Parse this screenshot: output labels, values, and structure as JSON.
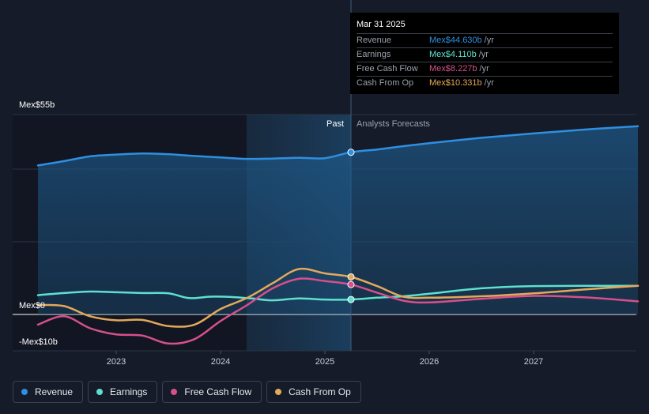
{
  "chart_data": {
    "type": "line",
    "y_axis": {
      "min": -10,
      "max": 55,
      "top_label": "Mex$55b",
      "zero_label": "Mex$0",
      "bottom_label": "-Mex$10b"
    },
    "x_ticks": [
      2023,
      2024,
      2025,
      2026,
      2027
    ],
    "x_tick_labels": [
      "2023",
      "2024",
      "2025",
      "2026",
      "2027"
    ],
    "x_range": [
      2022.25,
      2028.0
    ],
    "forecast_start": 2025.25,
    "past_shade_start": 2024.25,
    "past_label": "Past",
    "forecast_label": "Analysts Forecasts",
    "series": [
      {
        "key": "revenue",
        "name": "Revenue",
        "color": "#2f8fe0",
        "area": true,
        "points": [
          [
            2022.25,
            41.0
          ],
          [
            2022.5,
            42.2
          ],
          [
            2022.75,
            43.5
          ],
          [
            2023.0,
            44.0
          ],
          [
            2023.25,
            44.3
          ],
          [
            2023.5,
            44.1
          ],
          [
            2023.75,
            43.6
          ],
          [
            2024.0,
            43.2
          ],
          [
            2024.25,
            42.8
          ],
          [
            2024.5,
            42.9
          ],
          [
            2024.75,
            43.1
          ],
          [
            2025.0,
            43.0
          ],
          [
            2025.25,
            44.63
          ],
          [
            2025.5,
            45.4
          ],
          [
            2025.75,
            46.3
          ],
          [
            2026.0,
            47.1
          ],
          [
            2026.5,
            48.6
          ],
          [
            2027.0,
            49.8
          ],
          [
            2027.5,
            50.9
          ],
          [
            2028.0,
            51.8
          ]
        ],
        "highlight": 44.63
      },
      {
        "key": "earnings",
        "name": "Earnings",
        "color": "#5fe0cf",
        "points": [
          [
            2022.25,
            5.3
          ],
          [
            2022.5,
            5.9
          ],
          [
            2022.75,
            6.3
          ],
          [
            2023.0,
            6.1
          ],
          [
            2023.25,
            5.9
          ],
          [
            2023.5,
            5.8
          ],
          [
            2023.7,
            4.5
          ],
          [
            2023.9,
            4.9
          ],
          [
            2024.1,
            4.8
          ],
          [
            2024.3,
            4.4
          ],
          [
            2024.5,
            3.9
          ],
          [
            2024.75,
            4.4
          ],
          [
            2025.0,
            4.1
          ],
          [
            2025.25,
            4.11
          ],
          [
            2025.5,
            4.6
          ],
          [
            2025.75,
            5.0
          ],
          [
            2026.0,
            5.7
          ],
          [
            2026.5,
            7.2
          ],
          [
            2027.0,
            7.8
          ],
          [
            2028.0,
            7.9
          ]
        ],
        "highlight": 4.11
      },
      {
        "key": "fcf",
        "name": "Free Cash Flow",
        "color": "#d6508a",
        "points": [
          [
            2022.25,
            -2.8
          ],
          [
            2022.5,
            -0.5
          ],
          [
            2022.75,
            -3.8
          ],
          [
            2023.0,
            -5.5
          ],
          [
            2023.25,
            -5.8
          ],
          [
            2023.5,
            -8.0
          ],
          [
            2023.75,
            -6.8
          ],
          [
            2024.0,
            -1.8
          ],
          [
            2024.25,
            2.5
          ],
          [
            2024.5,
            7.2
          ],
          [
            2024.75,
            9.8
          ],
          [
            2025.0,
            9.2
          ],
          [
            2025.25,
            8.227
          ],
          [
            2025.5,
            6.0
          ],
          [
            2025.75,
            3.8
          ],
          [
            2026.0,
            3.3
          ],
          [
            2026.5,
            4.3
          ],
          [
            2027.0,
            5.1
          ],
          [
            2027.5,
            4.7
          ],
          [
            2028.0,
            3.6
          ]
        ],
        "highlight": 8.227
      },
      {
        "key": "cfo",
        "name": "Cash From Op",
        "color": "#e4a85a",
        "points": [
          [
            2022.25,
            2.6
          ],
          [
            2022.5,
            2.3
          ],
          [
            2022.75,
            -0.5
          ],
          [
            2023.0,
            -1.6
          ],
          [
            2023.25,
            -1.5
          ],
          [
            2023.5,
            -3.2
          ],
          [
            2023.75,
            -2.8
          ],
          [
            2024.0,
            1.5
          ],
          [
            2024.25,
            4.5
          ],
          [
            2024.5,
            8.6
          ],
          [
            2024.75,
            12.5
          ],
          [
            2025.0,
            11.3
          ],
          [
            2025.25,
            10.331
          ],
          [
            2025.5,
            7.8
          ],
          [
            2025.75,
            4.9
          ],
          [
            2026.0,
            4.6
          ],
          [
            2026.5,
            5.0
          ],
          [
            2027.0,
            5.8
          ],
          [
            2027.5,
            6.9
          ],
          [
            2028.0,
            7.9
          ]
        ],
        "highlight": 10.331
      }
    ]
  },
  "tooltip": {
    "date": "Mar 31 2025",
    "rows": [
      {
        "label": "Revenue",
        "value": "Mex$44.630b",
        "unit": "/yr",
        "color": "#2f8fe0"
      },
      {
        "label": "Earnings",
        "value": "Mex$4.110b",
        "unit": "/yr",
        "color": "#5fe0cf"
      },
      {
        "label": "Free Cash Flow",
        "value": "Mex$8.227b",
        "unit": "/yr",
        "color": "#d6508a"
      },
      {
        "label": "Cash From Op",
        "value": "Mex$10.331b",
        "unit": "/yr",
        "color": "#e4a85a"
      }
    ]
  },
  "legend": [
    {
      "label": "Revenue",
      "color": "#2f8fe0"
    },
    {
      "label": "Earnings",
      "color": "#5fe0cf"
    },
    {
      "label": "Free Cash Flow",
      "color": "#d6508a"
    },
    {
      "label": "Cash From Op",
      "color": "#e4a85a"
    }
  ]
}
